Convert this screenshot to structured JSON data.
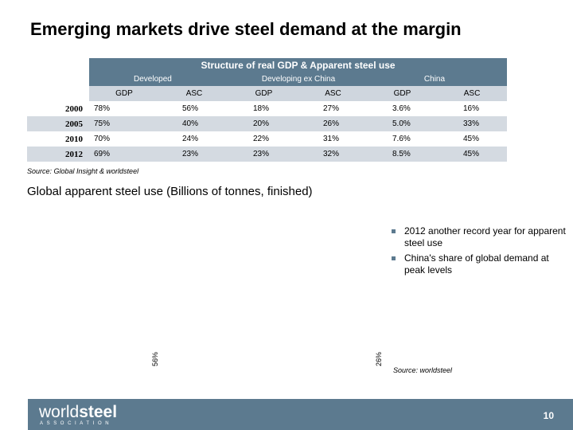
{
  "slide": {
    "title": "Emerging markets drive steel demand at the margin",
    "page_number": "10"
  },
  "table": {
    "title": "Structure of real GDP & Apparent  steel  use",
    "groups": [
      "Developed",
      "Developing ex China",
      "China"
    ],
    "columns": [
      "GDP",
      "ASC",
      "GDP",
      "ASC",
      "GDP",
      "ASC"
    ],
    "rows": [
      {
        "year": "2000",
        "values": [
          "78%",
          "56%",
          "18%",
          "27%",
          "3.6%",
          "16%"
        ]
      },
      {
        "year": "2005",
        "values": [
          "75%",
          "40%",
          "20%",
          "26%",
          "5.0%",
          "33%"
        ]
      },
      {
        "year": "2010",
        "values": [
          "70%",
          "24%",
          "22%",
          "31%",
          "7.6%",
          "45%"
        ]
      },
      {
        "year": "2012",
        "values": [
          "69%",
          "23%",
          "23%",
          "32%",
          "8.5%",
          "45%"
        ]
      }
    ],
    "source": "Source: Global Insight & worldsteel"
  },
  "chart": {
    "title": "Global apparent steel use (Billions of tonnes, finished)",
    "label_left": "56%",
    "label_right": "26%",
    "source": "Source: worldsteel"
  },
  "bullets": [
    "2012 another record year for apparent steel use",
    "China's share of global demand at peak levels"
  ],
  "footer": {
    "logo_light": "world",
    "logo_bold": "steel",
    "logo_sub": "ASSOCIATION",
    "colors": {
      "band": "#5c7a8f",
      "row_band": "#d4dae1"
    }
  }
}
